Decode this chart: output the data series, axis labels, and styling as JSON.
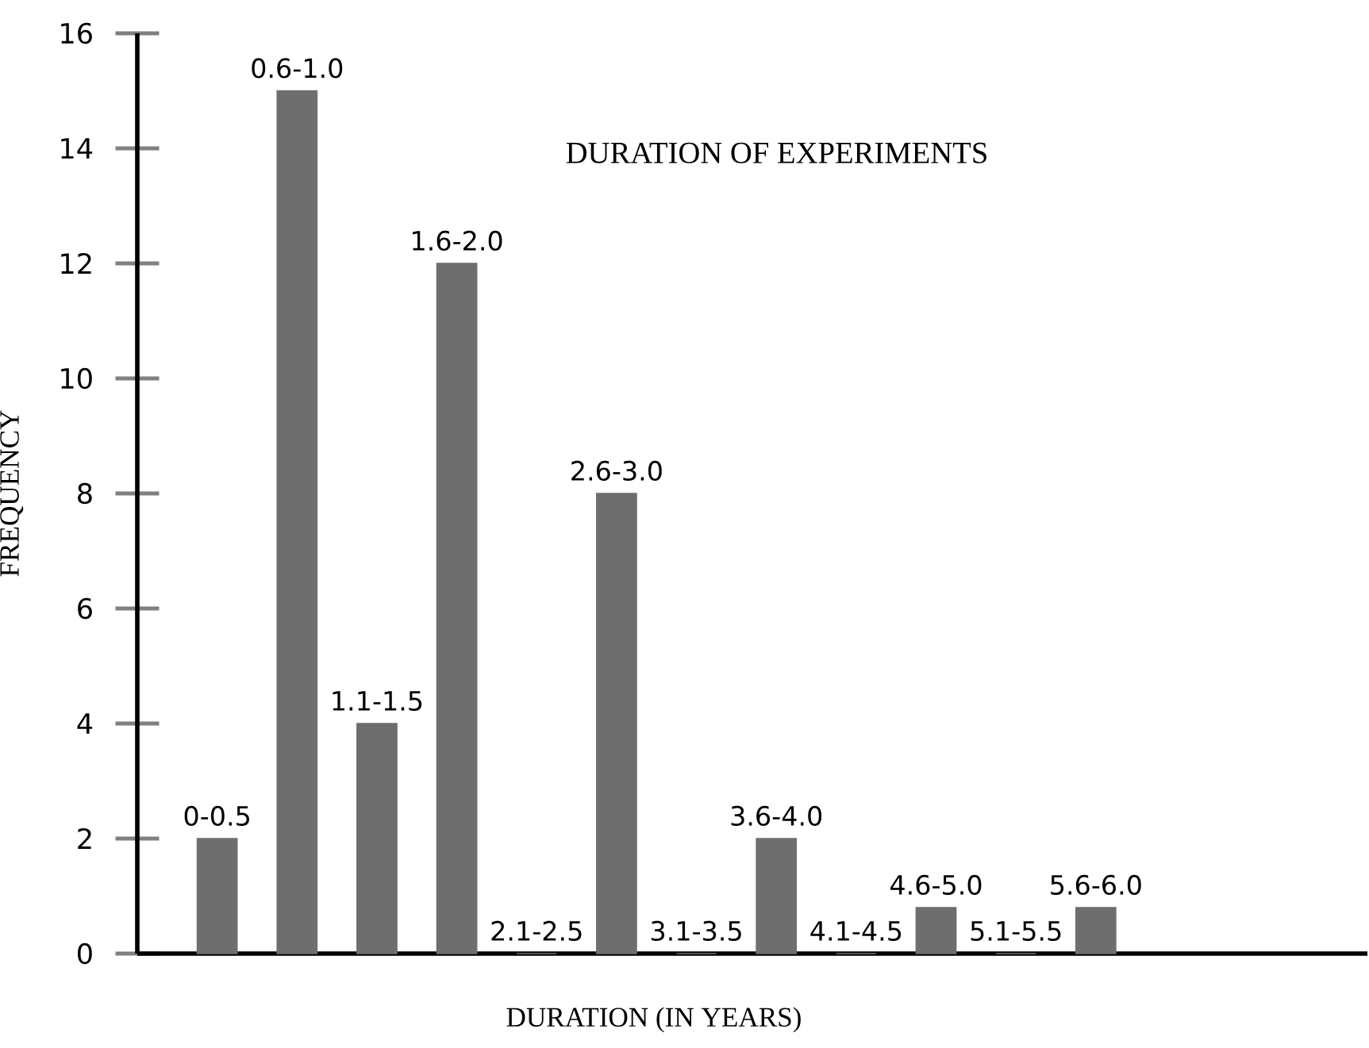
{
  "chart_data": {
    "type": "bar",
    "title": "DURATION OF EXPERIMENTS",
    "xlabel": "DURATION (IN YEARS)",
    "ylabel": "FREQUENCY",
    "categories": [
      "0-0.5",
      "0.6-1.0",
      "1.1-1.5",
      "1.6-2.0",
      "2.1-2.5",
      "2.6-3.0",
      "3.1-3.5",
      "3.6-4.0",
      "4.1-4.5",
      "4.6-5.0",
      "5.1-5.5",
      "5.6-6.0"
    ],
    "values": [
      2,
      15,
      4,
      12,
      0,
      8,
      0,
      2,
      0,
      0.8,
      0,
      0.8
    ],
    "color": "#6e6e6e",
    "ylim": [
      0,
      16
    ],
    "yticks": [
      0,
      2,
      4,
      6,
      8,
      10,
      12,
      14,
      16
    ],
    "tick_labels": "y"
  }
}
